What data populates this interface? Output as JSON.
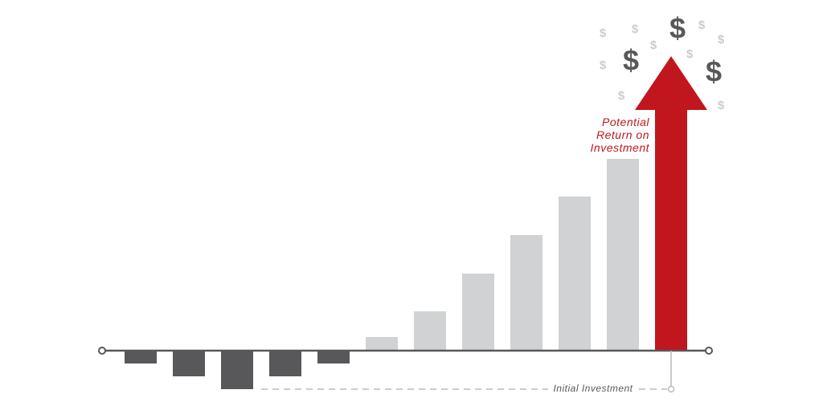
{
  "chart_data": {
    "type": "bar",
    "values": [
      -16,
      -32,
      -48,
      -32,
      -16,
      17,
      49,
      96,
      144,
      192,
      239
    ],
    "negative_color": "#58585a",
    "positive_color": "#d1d2d4",
    "ylim": [
      -63,
      437
    ],
    "highlight": {
      "label": "Potential Return on Investment",
      "value": 367,
      "color": "#c1161d"
    },
    "baseline_label": "Initial Investment",
    "symbol": "$"
  }
}
